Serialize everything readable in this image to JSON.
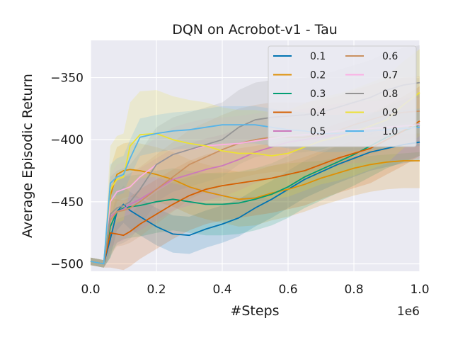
{
  "chart_data": {
    "type": "line",
    "title": "DQN on Acrobot-v1 - Tau",
    "xlabel": "#Steps",
    "ylabel": "Average Episodic Return",
    "x_offset_label": "1e6",
    "xlim": [
      0,
      1.0
    ],
    "ylim": [
      -506,
      -320
    ],
    "xticks": [
      0.0,
      0.2,
      0.4,
      0.6,
      0.8,
      1.0
    ],
    "xtick_labels": [
      "0.0",
      "0.2",
      "0.4",
      "0.6",
      "0.8",
      "1.0"
    ],
    "yticks": [
      -500,
      -450,
      -400,
      -350
    ],
    "ytick_labels": [
      "−500",
      "−450",
      "−400",
      "−350"
    ],
    "grid": true,
    "legend_position": "top-right",
    "legend_columns": 2,
    "x": [
      0,
      0.04,
      0.06,
      0.08,
      0.1,
      0.12,
      0.15,
      0.2,
      0.25,
      0.3,
      0.35,
      0.4,
      0.45,
      0.5,
      0.55,
      0.6,
      0.65,
      0.7,
      0.75,
      0.8,
      0.85,
      0.9,
      0.95,
      1.0
    ],
    "series": [
      {
        "name": "0.1",
        "color": "#0173b2",
        "values": [
          -498,
          -500,
          -480,
          -458,
          -452,
          -457,
          -462,
          -470,
          -476,
          -477,
          -472,
          -468,
          -463,
          -455,
          -448,
          -440,
          -432,
          -426,
          -420,
          -415,
          -410,
          -407,
          -404,
          -402
        ],
        "band": 15
      },
      {
        "name": "0.2",
        "color": "#de8f05",
        "values": [
          -498,
          -500,
          -445,
          -428,
          -425,
          -424,
          -425,
          -428,
          -432,
          -438,
          -442,
          -445,
          -448,
          -447,
          -443,
          -440,
          -436,
          -431,
          -427,
          -423,
          -420,
          -418,
          -417,
          -417
        ],
        "band": 22
      },
      {
        "name": "0.3",
        "color": "#029e73",
        "values": [
          -498,
          -500,
          -470,
          -458,
          -455,
          -454,
          -453,
          -450,
          -448,
          -450,
          -452,
          -452,
          -451,
          -448,
          -444,
          -438,
          -430,
          -424,
          -418,
          -412,
          -405,
          -398,
          -393,
          -388
        ],
        "band": 25
      },
      {
        "name": "0.4",
        "color": "#d55e00",
        "values": [
          -498,
          -500,
          -475,
          -476,
          -477,
          -474,
          -468,
          -460,
          -452,
          -445,
          -440,
          -437,
          -435,
          -433,
          -431,
          -428,
          -425,
          -420,
          -415,
          -411,
          -407,
          -400,
          -393,
          -385
        ],
        "band": 28
      },
      {
        "name": "0.5",
        "color": "#cc78bc",
        "values": [
          -498,
          -500,
          -462,
          -458,
          -456,
          -452,
          -448,
          -440,
          -432,
          -428,
          -424,
          -421,
          -416,
          -410,
          -406,
          -402,
          -400,
          -398,
          -396,
          -394,
          -393,
          -392,
          -391,
          -390
        ],
        "band": 25
      },
      {
        "name": "0.6",
        "color": "#ca9161",
        "values": [
          -498,
          -500,
          -465,
          -458,
          -457,
          -455,
          -450,
          -440,
          -430,
          -420,
          -414,
          -408,
          -403,
          -400,
          -398,
          -398,
          -398,
          -396,
          -393,
          -388,
          -384,
          -380,
          -378,
          -377
        ],
        "band": 28
      },
      {
        "name": "0.7",
        "color": "#fbafe4",
        "values": [
          -498,
          -500,
          -450,
          -442,
          -440,
          -438,
          -430,
          -420,
          -412,
          -408,
          -405,
          -404,
          -403,
          -401,
          -399,
          -397,
          -396,
          -395,
          -393,
          -392,
          -391,
          -390,
          -389,
          -388
        ],
        "band": 22
      },
      {
        "name": "0.8",
        "color": "#949494",
        "values": [
          -498,
          -500,
          -460,
          -455,
          -453,
          -450,
          -440,
          -420,
          -412,
          -408,
          -404,
          -400,
          -390,
          -384,
          -382,
          -381,
          -380,
          -378,
          -374,
          -370,
          -366,
          -360,
          -356,
          -354
        ],
        "band": 30
      },
      {
        "name": "0.9",
        "color": "#ece133",
        "values": [
          -498,
          -500,
          -440,
          -432,
          -430,
          -405,
          -396,
          -395,
          -400,
          -403,
          -405,
          -409,
          -411,
          -411,
          -413,
          -411,
          -406,
          -401,
          -398,
          -394,
          -389,
          -384,
          -372,
          -362
        ],
        "band": 35
      },
      {
        "name": "1.0",
        "color": "#56b4e9",
        "values": [
          -498,
          -500,
          -435,
          -430,
          -428,
          -415,
          -398,
          -395,
          -393,
          -392,
          -390,
          -388,
          -388,
          -388,
          -390,
          -392,
          -393,
          -395,
          -395,
          -394,
          -393,
          -392,
          -391,
          -390
        ],
        "band": 15
      }
    ]
  }
}
